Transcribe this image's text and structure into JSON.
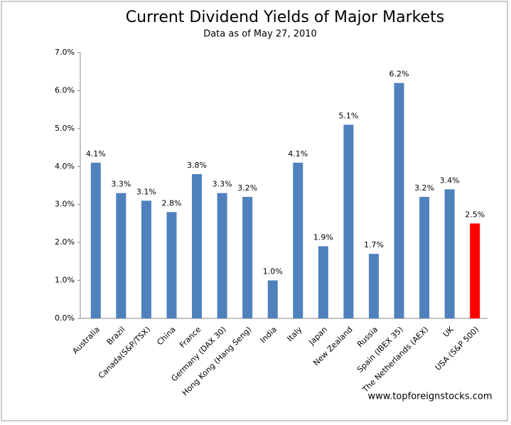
{
  "chart_data": {
    "type": "bar",
    "title": "Current Dividend Yields of Major Markets",
    "subtitle": "Data as of May 27, 2010",
    "source": "www.topforeignstocks.com",
    "categories": [
      "Australia",
      "Brazil",
      "Canada(S&P/TSX)",
      "China",
      "France",
      "Germany (DAX 30)",
      "Hong Kong (Hang Seng)",
      "India",
      "Italy",
      "Japan",
      "New Zealand",
      "Russia",
      "Spain (IBEX 35)",
      "The Netherlands (AEX)",
      "UK",
      "USA (S&P 500)"
    ],
    "values": [
      4.1,
      3.3,
      3.1,
      2.8,
      3.8,
      3.3,
      3.2,
      1.0,
      4.1,
      1.9,
      5.1,
      1.7,
      6.2,
      3.2,
      3.4,
      2.5
    ],
    "value_labels": [
      "4.1%",
      "3.3%",
      "3.1%",
      "2.8%",
      "3.8%",
      "3.3%",
      "3.2%",
      "1.0%",
      "4.1%",
      "1.9%",
      "5.1%",
      "1.7%",
      "6.2%",
      "3.2%",
      "3.4%",
      "2.5%"
    ],
    "colors": [
      "#4f81bd",
      "#4f81bd",
      "#4f81bd",
      "#4f81bd",
      "#4f81bd",
      "#4f81bd",
      "#4f81bd",
      "#4f81bd",
      "#4f81bd",
      "#4f81bd",
      "#4f81bd",
      "#4f81bd",
      "#4f81bd",
      "#4f81bd",
      "#4f81bd",
      "#ff0000"
    ],
    "ylim": [
      0,
      7
    ],
    "yticks": [
      {
        "value": 0,
        "label": "0.0%"
      },
      {
        "value": 1,
        "label": "1.0%"
      },
      {
        "value": 2,
        "label": "2.0%"
      },
      {
        "value": 3,
        "label": "3.0%"
      },
      {
        "value": 4,
        "label": "4.0%"
      },
      {
        "value": 5,
        "label": "5.0%"
      },
      {
        "value": 6,
        "label": "6.0%"
      },
      {
        "value": 7,
        "label": "7.0%"
      }
    ],
    "grid": false
  }
}
